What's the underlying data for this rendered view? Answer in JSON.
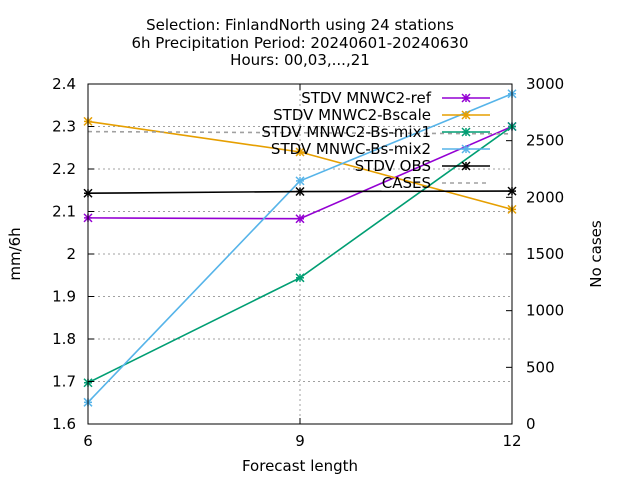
{
  "chart_data": {
    "type": "line",
    "title_lines": [
      "Selection: FinlandNorth using    24 stations",
      "6h Precipitation   Period: 20240601-20240630",
      "Hours: 00,03,...,21"
    ],
    "xlabel": "Forecast length",
    "ylabel": "mm/6h",
    "y2label": "No cases",
    "x": [
      6,
      9,
      12
    ],
    "xlim": [
      6,
      12
    ],
    "ylim": [
      1.6,
      2.4
    ],
    "y2lim": [
      0,
      3000
    ],
    "x_ticks": [
      "6",
      "9",
      "12"
    ],
    "y_ticks": [
      "1.6",
      "1.7",
      "1.8",
      "1.9",
      "2",
      "2.1",
      "2.2",
      "2.3",
      "2.4"
    ],
    "y2_ticks": [
      "0",
      "500",
      "1000",
      "1500",
      "2000",
      "2500",
      "3000"
    ],
    "grid": true,
    "legend_position": "top-right",
    "series": [
      {
        "name": "STDV MNWC2-ref",
        "color": "#9400d3",
        "axis": "y",
        "style": "solid",
        "values": [
          2.085,
          2.083,
          2.3
        ]
      },
      {
        "name": "STDV MNWC2-Bscale",
        "color": "#e69f00",
        "axis": "y",
        "style": "solid",
        "values": [
          2.312,
          2.24,
          2.105
        ]
      },
      {
        "name": "STDV MNWC2-Bs-mix1",
        "color": "#009e73",
        "axis": "y",
        "style": "solid",
        "values": [
          1.697,
          1.944,
          2.3
        ]
      },
      {
        "name": "STDV MNWC-Bs-mix2",
        "color": "#56b4e9",
        "axis": "y",
        "style": "solid",
        "values": [
          1.651,
          2.172,
          2.377
        ]
      },
      {
        "name": "STDV OBS",
        "color": "#000000",
        "axis": "y",
        "style": "solid",
        "values": [
          2.143,
          2.147,
          2.148
        ]
      },
      {
        "name": "CASES",
        "color": "#a0a0a0",
        "axis": "y2",
        "style": "dashed",
        "values": [
          2580,
          2570,
          2560
        ]
      }
    ]
  }
}
